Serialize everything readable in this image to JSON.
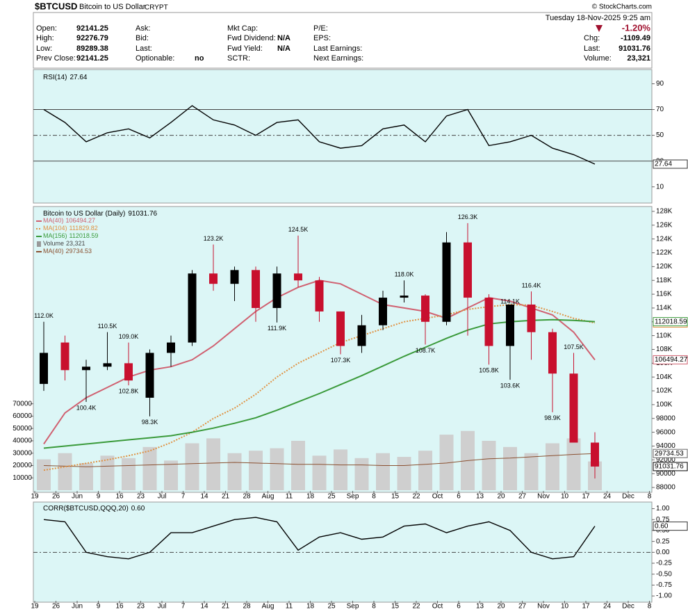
{
  "header": {
    "symbol": "$BTCUSD",
    "name": "Bitcoin to US Dollar",
    "exchange": "CRYPT",
    "copyright": "© StockCharts.com",
    "datetime": "Tuesday  18-Nov-2025  9:25 am",
    "change": "-1.20%",
    "columns": [
      [
        {
          "label": "Open:",
          "value": "92141.25"
        },
        {
          "label": "High:",
          "value": "92276.79"
        },
        {
          "label": "Low:",
          "value": "89289.38"
        },
        {
          "label": "Prev Close:",
          "value": "92141.25"
        }
      ],
      [
        {
          "label": "Ask:"
        },
        {
          "label": "Bid:"
        },
        {
          "label": "Last:"
        },
        {
          "label": "Optionable:",
          "value": "no"
        }
      ],
      [
        {
          "label": "Mkt Cap:"
        },
        {
          "label": "Fwd Dividend:",
          "value": "N/A"
        },
        {
          "label": "Fwd Yield:",
          "value": "N/A"
        },
        {
          "label": "SCTR:"
        }
      ],
      [
        {
          "label": "P/E:"
        },
        {
          "label": "EPS:"
        },
        {
          "label": "Last Earnings:"
        },
        {
          "label": "Next Earnings:"
        }
      ],
      [
        {
          "label": "Chg:",
          "value": "-1109.49"
        },
        {
          "label": "Last:",
          "value": "91031.76"
        },
        {
          "label": "Volume:",
          "value": "23,321"
        }
      ]
    ]
  },
  "chart_data": [
    {
      "type": "line",
      "series": [
        {
          "name": "RSI(14)",
          "color": "#000000",
          "values": [
            70,
            60,
            45,
            52,
            55,
            48,
            60,
            73,
            62,
            58,
            50,
            60,
            62,
            45,
            40,
            42,
            55,
            58,
            45,
            65,
            70,
            42,
            45,
            50,
            40,
            35,
            27.64
          ]
        }
      ],
      "ylim": [
        -1.5,
        98.9
      ],
      "yticks": [
        10,
        30,
        50,
        70,
        90
      ],
      "reference_lines": [
        30,
        50,
        70
      ]
    },
    {
      "type": "candlestick",
      "title": "Bitcoin to US Dollar (Daily)",
      "categories": [
        "19",
        "26",
        "Jun",
        "9",
        "16",
        "23",
        "Jul",
        "7",
        "14",
        "21",
        "28",
        "Aug",
        "11",
        "18",
        "25",
        "Sep",
        "8",
        "15",
        "22",
        "Oct",
        "6",
        "13",
        "20",
        "27",
        "Nov",
        "10",
        "17",
        "24",
        "Dec",
        "8"
      ],
      "open": [
        103000,
        109000,
        105000,
        105500,
        106000,
        101000,
        107500,
        109000,
        119000,
        117500,
        119500,
        114000,
        119000,
        118000,
        113500,
        108500,
        111500,
        115500,
        115800,
        112000,
        123500,
        115500,
        108500,
        114500,
        110500,
        104500,
        94500,
        null,
        null,
        null
      ],
      "high": [
        112000,
        110000,
        106500,
        110500,
        109000,
        108000,
        110000,
        119500,
        123200,
        120000,
        120000,
        120000,
        124500,
        118500,
        113500,
        113000,
        116500,
        118000,
        116000,
        125000,
        126300,
        116000,
        114100,
        116400,
        111000,
        107500,
        96000,
        null,
        null,
        null
      ],
      "low": [
        102000,
        103500,
        100400,
        105000,
        102800,
        98300,
        105500,
        108500,
        116500,
        115000,
        112000,
        111900,
        117000,
        112000,
        107300,
        107500,
        110800,
        114800,
        108700,
        111500,
        110000,
        105800,
        103600,
        106500,
        98900,
        94500,
        89300,
        null,
        null,
        null
      ],
      "close": [
        107500,
        105000,
        105500,
        106000,
        103500,
        107500,
        109000,
        119000,
        117500,
        119500,
        114000,
        119000,
        118000,
        113500,
        108500,
        111500,
        115500,
        115800,
        112000,
        123500,
        115500,
        108500,
        114500,
        110500,
        104500,
        94500,
        91031.76,
        null,
        null,
        null
      ],
      "up_color": "#000000",
      "down_color": "#c8102e",
      "ylim": [
        87500,
        128400
      ],
      "yticks": [
        88000,
        90000,
        92000,
        94000,
        96000,
        98000,
        {
          "value": 100000,
          "label": "100K"
        },
        {
          "value": 102000,
          "label": "102K"
        },
        {
          "value": 104000,
          "label": "104K"
        },
        {
          "value": 106000,
          "label": "106K"
        },
        {
          "value": 108000,
          "label": "108K"
        },
        {
          "value": 110000,
          "label": "110K"
        },
        {
          "value": 112000,
          "label": "112K"
        },
        {
          "value": 114000,
          "label": "114K"
        },
        {
          "value": 116000,
          "label": "116K"
        },
        {
          "value": 118000,
          "label": "118K"
        },
        {
          "value": 120000,
          "label": "120K"
        },
        {
          "value": 122000,
          "label": "122K"
        },
        {
          "value": 124000,
          "label": "124K"
        },
        {
          "value": 126000,
          "label": "126K"
        },
        {
          "value": 128000,
          "label": "128K"
        }
      ],
      "annotations": [
        {
          "value": 112000,
          "label": "112.0K"
        },
        {
          "value": 110500,
          "label": "110.5K"
        },
        {
          "value": 109000,
          "label": "109.0K"
        },
        {
          "value": 100400,
          "label": "100.4K"
        },
        {
          "value": 102800,
          "label": "102.8K"
        },
        {
          "value": 98300,
          "label": "98.3K"
        },
        {
          "value": 123200,
          "label": "123.2K"
        },
        {
          "value": 111900,
          "label": "111.9K"
        },
        {
          "value": 124500,
          "label": "124.5K"
        },
        {
          "value": 107300,
          "label": "107.3K"
        },
        {
          "value": 118000,
          "label": "118.0K"
        },
        {
          "value": 108700,
          "label": "108.7K"
        },
        {
          "value": 126300,
          "label": "126.3K"
        },
        {
          "value": 105800,
          "label": "105.8K"
        },
        {
          "value": 103600,
          "label": "103.6K"
        },
        {
          "value": 114100,
          "label": "114.1K"
        },
        {
          "value": 116400,
          "label": "116.4K"
        },
        {
          "value": 98900,
          "label": "98.9K"
        },
        {
          "value": 107500,
          "label": "107.5K"
        }
      ],
      "lines": [
        {
          "name": "MA(40)",
          "color": "#d06070",
          "style": "solid",
          "values": [
            94300,
            98800,
            101000,
            102500,
            104000,
            105000,
            105500,
            106500,
            108500,
            111000,
            113500,
            115500,
            117000,
            118000,
            117500,
            116000,
            114500,
            114000,
            113500,
            112500,
            114000,
            115500,
            115000,
            114000,
            113000,
            110500,
            106494.27,
            null,
            null,
            null
          ]
        },
        {
          "name": "MA(104)",
          "color": "#e09040",
          "style": "dotted",
          "values": [
            90500,
            91000,
            91500,
            92000,
            92600,
            93300,
            94500,
            96000,
            98000,
            99500,
            101500,
            104000,
            106000,
            107500,
            109000,
            110000,
            111000,
            112000,
            112500,
            113000,
            113800,
            114200,
            114500,
            114400,
            113500,
            112500,
            111829.82,
            null,
            null,
            null
          ]
        },
        {
          "name": "MA(156)",
          "color": "#3a9a3a",
          "style": "solid",
          "values": [
            93700,
            94000,
            94300,
            94600,
            94900,
            95200,
            95500,
            96000,
            96600,
            97300,
            98100,
            99200,
            100400,
            101600,
            102900,
            104200,
            105600,
            107000,
            108300,
            109600,
            110800,
            111700,
            112000,
            112200,
            112300,
            112200,
            112018.59,
            null,
            null,
            null
          ]
        }
      ],
      "volume": {
        "name": "Volume",
        "color": "#cfcfcf",
        "last_label": "23,321",
        "ylim": [
          0,
          228000
        ],
        "yticks": [
          10000,
          20000,
          30000,
          40000,
          50000,
          60000,
          70000
        ],
        "values": [
          25000,
          30000,
          22000,
          28000,
          26000,
          35000,
          24000,
          38000,
          42000,
          30000,
          32000,
          34000,
          40000,
          28000,
          33000,
          26000,
          30000,
          27000,
          32000,
          45000,
          48000,
          40000,
          35000,
          30000,
          38000,
          42000,
          23321,
          null,
          null,
          null
        ],
        "ma": {
          "name": "MA(40)",
          "color": "#8a5030",
          "values": [
            20000,
            19500,
            19000,
            19500,
            20000,
            20500,
            21000,
            21500,
            22000,
            22500,
            22000,
            21500,
            21000,
            21000,
            20500,
            20500,
            20000,
            20000,
            21000,
            22000,
            24000,
            25500,
            26000,
            27000,
            28000,
            29000,
            29734.53,
            null,
            null,
            null
          ]
        }
      }
    },
    {
      "type": "line",
      "categories": [
        "19",
        "26",
        "Jun",
        "9",
        "16",
        "23",
        "Jul",
        "7",
        "14",
        "21",
        "28",
        "Aug",
        "11",
        "18",
        "25",
        "Sep",
        "8",
        "15",
        "22",
        "Oct",
        "6",
        "13",
        "20",
        "27",
        "Nov",
        "10",
        "17",
        "24",
        "Dec",
        "8"
      ],
      "series": [
        {
          "name": "CORR($BTCUSD,QQQ,20)",
          "color": "#000000",
          "last_label": "0.60",
          "values": [
            0.75,
            0.7,
            0,
            -0.1,
            -0.15,
            0,
            0.45,
            0.45,
            0.6,
            0.75,
            0.8,
            0.7,
            0.05,
            0.35,
            0.45,
            0.3,
            0.35,
            0.6,
            0.65,
            0.45,
            0.6,
            0.7,
            0.5,
            0,
            -0.15,
            -0.1,
            0.6,
            null,
            null,
            null
          ]
        }
      ],
      "ylim": [
        -1.11,
        1.12
      ],
      "yticks": [
        {
          "value": 1,
          "label": "1.00"
        },
        {
          "value": 0.75,
          "label": "0.75"
        },
        {
          "value": 0.5,
          "label": "0.50"
        },
        {
          "value": 0.25,
          "label": "0.25"
        },
        {
          "value": 0,
          "label": "0.00"
        },
        {
          "value": -0.25,
          "label": "-0.25"
        },
        {
          "value": -0.5,
          "label": "-0.50"
        },
        {
          "value": -0.75,
          "label": "-0.75"
        },
        {
          "value": -1,
          "label": "-1.00"
        }
      ],
      "reference_lines": [
        0
      ]
    }
  ]
}
